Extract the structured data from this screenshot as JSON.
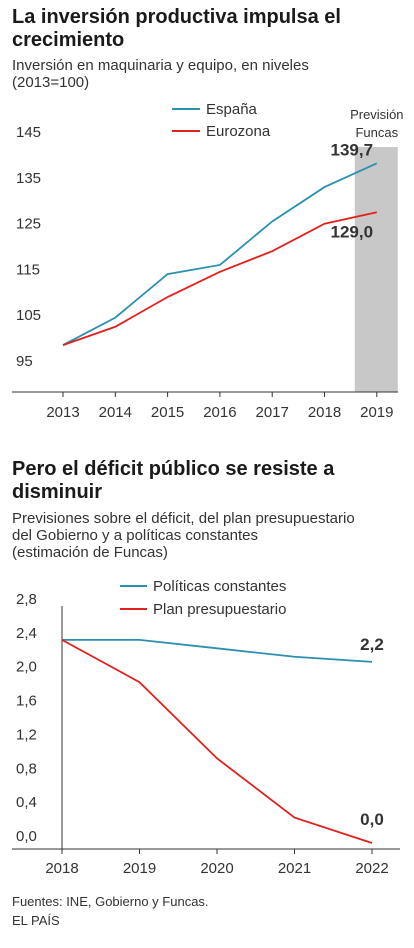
{
  "chart_data": [
    {
      "type": "line",
      "title": "La inversión productiva impulsa el crecimiento",
      "subtitle_lines": [
        "Inversión en maquinaria y equipo, en niveles",
        "(2013=100)"
      ],
      "categories": [
        "2013",
        "2014",
        "2015",
        "2016",
        "2017",
        "2018",
        "2019"
      ],
      "yticks": [
        "145",
        "135",
        "125",
        "115",
        "105",
        "95"
      ],
      "ylim": [
        95,
        145
      ],
      "series": [
        {
          "name": "España",
          "color": "#2b8fb0",
          "values": [
            100,
            106,
            115.5,
            117.5,
            127,
            134.5,
            139.7
          ]
        },
        {
          "name": "Eurozona",
          "color": "#e2201c",
          "values": [
            100,
            104,
            110.5,
            116,
            120.5,
            126.5,
            129.0
          ]
        }
      ],
      "forecast": {
        "label_lines": [
          "Previsión",
          "Funcas"
        ],
        "category": "2019",
        "color": "#c8c8c8"
      },
      "end_labels": [
        "139,7",
        "129,0"
      ],
      "grid": false,
      "legend": "top"
    },
    {
      "type": "line",
      "title": "Pero el déficit público se resiste a disminuir",
      "subtitle_lines": [
        "Previsiones sobre el déficit, del plan presupuestario",
        "del Gobierno y a políticas constantes",
        "(estimación de Funcas)"
      ],
      "categories": [
        "2018",
        "2019",
        "2020",
        "2021",
        "2022"
      ],
      "yticks": [
        "2,8",
        "2,4",
        "2,0",
        "1,6",
        "1,2",
        "0,8",
        "0,4",
        "0,0"
      ],
      "ylim": [
        0,
        2.8
      ],
      "series": [
        {
          "name": "Políticas constantes",
          "color": "#2b8fb0",
          "values": [
            2.4,
            2.4,
            2.3,
            2.2,
            2.14
          ]
        },
        {
          "name": "Plan presupuestario",
          "color": "#e2201c",
          "values": [
            2.4,
            1.9,
            1.0,
            0.3,
            0.0
          ]
        }
      ],
      "end_labels": [
        "2,2",
        "0,0"
      ],
      "grid": false,
      "legend": "top"
    }
  ],
  "footer": {
    "source": "Fuentes: INE, Gobierno y Funcas.",
    "brand": "EL PAÍS"
  }
}
